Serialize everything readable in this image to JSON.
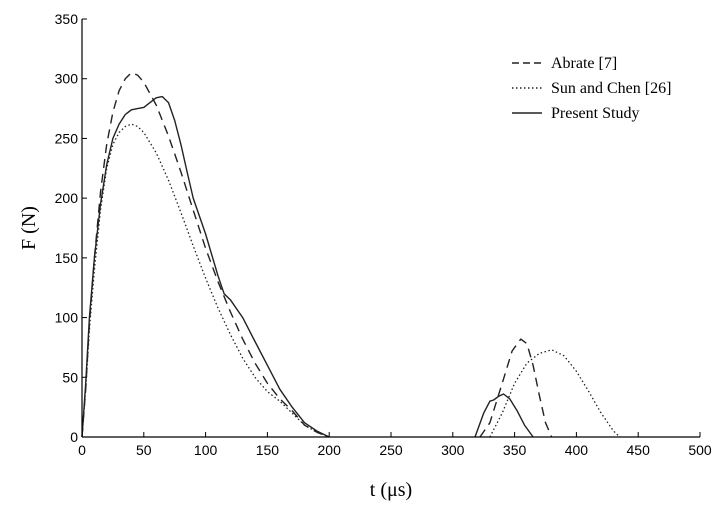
{
  "chart_data": {
    "type": "line",
    "xlabel": "t (μs)",
    "ylabel": "F (N)",
    "xlim": [
      0,
      500
    ],
    "ylim": [
      0,
      350
    ],
    "x_ticks": [
      "0",
      "50",
      "100",
      "150",
      "200",
      "250",
      "300",
      "350",
      "400",
      "450",
      "500"
    ],
    "y_ticks": [
      "0",
      "50",
      "100",
      "150",
      "200",
      "250",
      "300",
      "350"
    ],
    "grid": false,
    "legend_position": "top-right",
    "series": [
      {
        "name": "Abrate [7]",
        "style": "dashed",
        "segments": [
          [
            [
              0,
              0
            ],
            [
              3,
              40
            ],
            [
              6,
              95
            ],
            [
              10,
              150
            ],
            [
              15,
              205
            ],
            [
              20,
              245
            ],
            [
              25,
              272
            ],
            [
              30,
              290
            ],
            [
              35,
              300
            ],
            [
              40,
              305
            ],
            [
              45,
              303
            ],
            [
              50,
              297
            ],
            [
              60,
              278
            ],
            [
              70,
              252
            ],
            [
              80,
              222
            ],
            [
              90,
              190
            ],
            [
              100,
              158
            ],
            [
              110,
              130
            ],
            [
              120,
              105
            ],
            [
              130,
              82
            ],
            [
              140,
              62
            ],
            [
              150,
              45
            ],
            [
              160,
              32
            ],
            [
              170,
              22
            ],
            [
              180,
              10
            ],
            [
              190,
              4
            ],
            [
              200,
              0
            ]
          ],
          [
            [
              322,
              0
            ],
            [
              330,
              12
            ],
            [
              340,
              45
            ],
            [
              348,
              72
            ],
            [
              355,
              82
            ],
            [
              360,
              78
            ],
            [
              365,
              60
            ],
            [
              370,
              35
            ],
            [
              375,
              12
            ],
            [
              380,
              0
            ]
          ]
        ]
      },
      {
        "name": "Sun and Chen [26]",
        "style": "dotted",
        "segments": [
          [
            [
              0,
              0
            ],
            [
              3,
              40
            ],
            [
              6,
              90
            ],
            [
              10,
              140
            ],
            [
              15,
              190
            ],
            [
              20,
              225
            ],
            [
              25,
              245
            ],
            [
              30,
              255
            ],
            [
              35,
              260
            ],
            [
              40,
              262
            ],
            [
              45,
              260
            ],
            [
              50,
              255
            ],
            [
              60,
              238
            ],
            [
              70,
              215
            ],
            [
              80,
              188
            ],
            [
              90,
              160
            ],
            [
              100,
              133
            ],
            [
              110,
              108
            ],
            [
              120,
              86
            ],
            [
              130,
              66
            ],
            [
              140,
              50
            ],
            [
              150,
              38
            ],
            [
              160,
              30
            ],
            [
              170,
              20
            ],
            [
              180,
              10
            ],
            [
              190,
              4
            ],
            [
              200,
              0
            ]
          ],
          [
            [
              330,
              0
            ],
            [
              340,
              20
            ],
            [
              350,
              45
            ],
            [
              360,
              62
            ],
            [
              370,
              70
            ],
            [
              380,
              73
            ],
            [
              390,
              68
            ],
            [
              400,
              55
            ],
            [
              410,
              38
            ],
            [
              420,
              20
            ],
            [
              430,
              5
            ],
            [
              435,
              0
            ]
          ]
        ]
      },
      {
        "name": "Present Study",
        "style": "solid",
        "segments": [
          [
            [
              0,
              0
            ],
            [
              3,
              45
            ],
            [
              6,
              100
            ],
            [
              10,
              150
            ],
            [
              15,
              195
            ],
            [
              20,
              228
            ],
            [
              25,
              250
            ],
            [
              30,
              262
            ],
            [
              35,
              270
            ],
            [
              40,
              274
            ],
            [
              45,
              275
            ],
            [
              50,
              276
            ],
            [
              55,
              280
            ],
            [
              60,
              284
            ],
            [
              65,
              285
            ],
            [
              70,
              280
            ],
            [
              75,
              265
            ],
            [
              80,
              245
            ],
            [
              85,
              222
            ],
            [
              90,
              200
            ],
            [
              100,
              170
            ],
            [
              110,
              135
            ],
            [
              115,
              120
            ],
            [
              120,
              115
            ],
            [
              130,
              100
            ],
            [
              140,
              80
            ],
            [
              150,
              60
            ],
            [
              160,
              40
            ],
            [
              170,
              25
            ],
            [
              180,
              12
            ],
            [
              190,
              5
            ],
            [
              200,
              0
            ]
          ],
          [
            [
              318,
              0
            ],
            [
              325,
              20
            ],
            [
              330,
              30
            ],
            [
              333,
              31
            ],
            [
              337,
              34
            ],
            [
              341,
              36
            ],
            [
              346,
              32
            ],
            [
              352,
              22
            ],
            [
              358,
              10
            ],
            [
              365,
              0
            ]
          ]
        ]
      }
    ]
  }
}
